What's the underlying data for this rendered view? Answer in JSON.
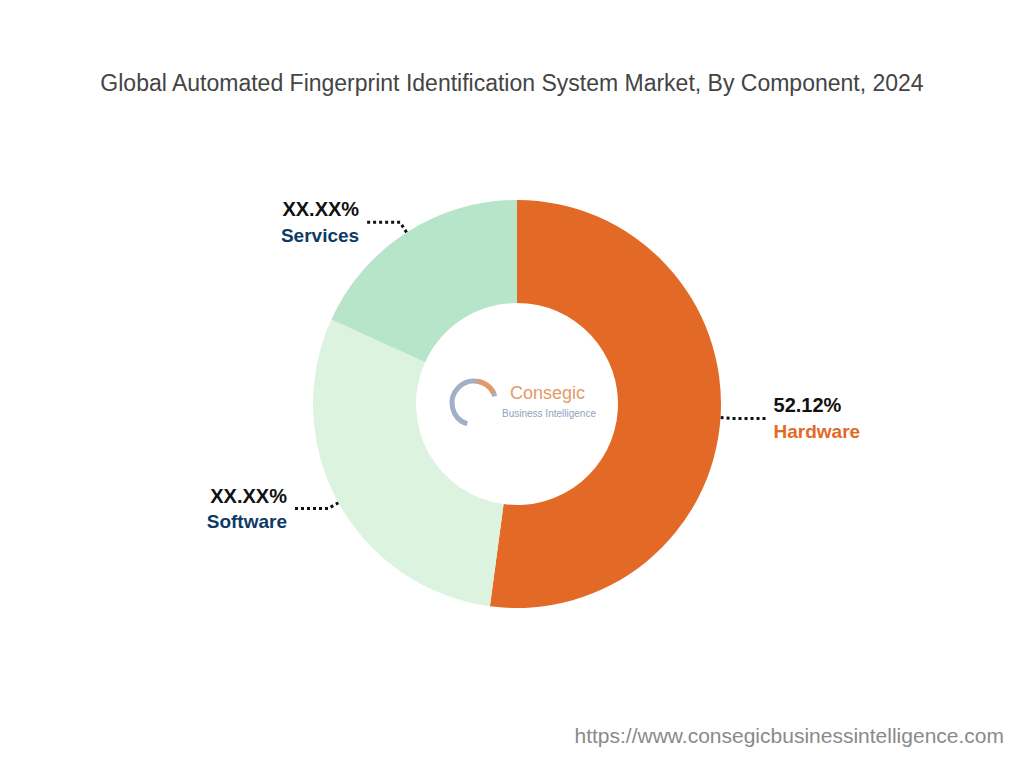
{
  "chart_data": {
    "type": "pie",
    "title": "Global Automated Fingerprint Identification System Market, By Component, 2024",
    "categories": [
      "Hardware",
      "Software",
      "Services"
    ],
    "values": [
      52.12,
      29.68,
      18.2
    ],
    "value_labels": [
      "52.12%",
      "XX.XX%",
      "XX.XX%"
    ],
    "colors": [
      "#e36a26",
      "#dcf3e0",
      "#b6e5c9"
    ],
    "data_labels": true,
    "annotations": [
      "Consegic",
      "Business Intelligence",
      "https://www.consegicbusinessintelligence.com"
    ]
  }
}
